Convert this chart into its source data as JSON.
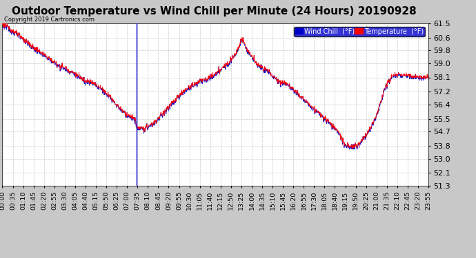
{
  "title": "Outdoor Temperature vs Wind Chill per Minute (24 Hours) 20190928",
  "copyright": "Copyright 2019 Cartronics.com",
  "ylim": [
    51.3,
    61.5
  ],
  "yticks": [
    51.3,
    52.1,
    53.0,
    53.8,
    54.7,
    55.5,
    56.4,
    57.2,
    58.1,
    59.0,
    59.8,
    60.6,
    61.5
  ],
  "bg_color": "#c8c8c8",
  "plot_bg_color": "#ffffff",
  "grid_color": "#c8c8c8",
  "temp_color": "#ff0000",
  "wind_color": "#0000cc",
  "title_fontsize": 11,
  "tick_fontsize": 8,
  "xtick_labels": [
    "00:00",
    "00:35",
    "01:10",
    "01:45",
    "02:20",
    "02:55",
    "03:30",
    "04:05",
    "04:40",
    "05:15",
    "05:50",
    "06:25",
    "07:00",
    "07:35",
    "08:10",
    "08:45",
    "09:20",
    "09:55",
    "10:30",
    "11:05",
    "11:40",
    "12:15",
    "12:50",
    "13:25",
    "14:00",
    "14:35",
    "15:10",
    "15:45",
    "16:20",
    "16:55",
    "17:30",
    "18:05",
    "18:40",
    "19:15",
    "19:50",
    "20:25",
    "21:00",
    "21:35",
    "22:10",
    "22:45",
    "23:20",
    "23:55"
  ],
  "control_x_temp": [
    0,
    0.5,
    1.0,
    1.5,
    2.0,
    2.5,
    3.0,
    3.5,
    4.0,
    4.5,
    5.0,
    5.5,
    6.0,
    6.5,
    7.0,
    7.5,
    7.583,
    8.0,
    8.5,
    9.0,
    9.5,
    10.0,
    10.5,
    11.0,
    11.5,
    12.0,
    12.5,
    13.0,
    13.2,
    13.4,
    13.5,
    13.6,
    13.8,
    14.0,
    14.2,
    14.5,
    15.0,
    15.5,
    15.8,
    16.0,
    16.2,
    16.5,
    17.0,
    17.5,
    18.0,
    18.5,
    19.0,
    19.25,
    19.5,
    20.0,
    20.5,
    21.0,
    21.3,
    21.5,
    21.7,
    22.0,
    22.5,
    23.0,
    23.5,
    24.0
  ],
  "control_y_temp": [
    61.5,
    61.1,
    60.7,
    60.2,
    59.8,
    59.4,
    59.0,
    58.7,
    58.4,
    58.0,
    57.8,
    57.5,
    57.0,
    56.3,
    55.8,
    55.5,
    54.9,
    54.9,
    55.2,
    55.8,
    56.4,
    57.0,
    57.5,
    57.8,
    58.0,
    58.3,
    58.8,
    59.4,
    59.7,
    60.3,
    60.5,
    60.4,
    59.8,
    59.5,
    59.2,
    58.8,
    58.5,
    57.9,
    57.8,
    57.8,
    57.5,
    57.3,
    56.7,
    56.2,
    55.7,
    55.2,
    54.6,
    53.9,
    53.8,
    53.8,
    54.5,
    55.5,
    56.5,
    57.3,
    57.8,
    58.2,
    58.3,
    58.2,
    58.1,
    58.1
  ],
  "spike_hour": 7.583,
  "legend_wind_label": "Wind Chill  (°F)",
  "legend_temp_label": "Temperature  (°F)"
}
